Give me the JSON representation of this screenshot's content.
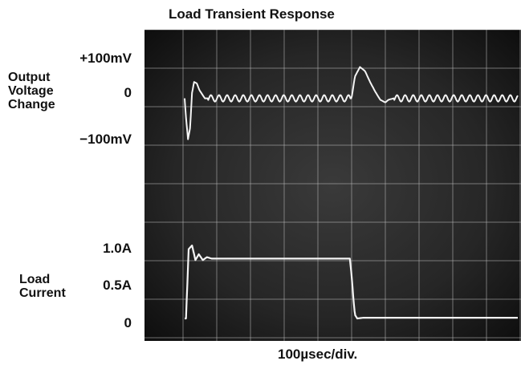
{
  "chart_data": {
    "type": "line",
    "title": "Load Transient Response",
    "xlabel": "100µsec/div.",
    "grid": true,
    "panels": [
      {
        "name": "Output Voltage Change",
        "label_lines": [
          "Output",
          "Voltage",
          "Change"
        ],
        "unit": "mV",
        "y_ticks": [
          "+100mV",
          "0",
          "−100mV"
        ],
        "y_tick_values": [
          100,
          0,
          -100
        ],
        "series": [
          {
            "x": [
              0,
              0.04,
              0.1,
              0.16,
              0.22,
              0.28,
              0.36,
              0.44,
              0.52,
              0.6,
              0.8,
              1.0,
              1.5,
              2.0,
              2.5,
              3.0,
              3.5,
              4.0,
              4.5,
              4.95,
              5.05,
              5.2,
              5.35,
              5.5,
              5.65,
              5.8,
              5.95,
              6.05,
              6.2,
              6.5,
              7.0,
              7.5,
              8.0,
              8.5,
              9.0,
              9.5,
              10.0
            ],
            "y": [
              -40,
              -110,
              -190,
              -150,
              -20,
              20,
              15,
              -10,
              -25,
              -40,
              -40,
              -40,
              -40,
              -40,
              -40,
              -40,
              -40,
              -40,
              -40,
              -40,
              40,
              75,
              60,
              20,
              -15,
              -45,
              -55,
              -45,
              -40,
              -40,
              -40,
              -40,
              -40,
              -40,
              -40,
              -40,
              -40
            ]
          }
        ],
        "ripple_mV": 12,
        "ripple_period_div": 0.24
      },
      {
        "name": "Load Current",
        "label_lines": [
          "Load",
          "Current"
        ],
        "unit": "A",
        "y_ticks": [
          "1.0A",
          "0.5A",
          "0"
        ],
        "y_tick_values": [
          1.0,
          0.5,
          0
        ],
        "series": [
          {
            "x": [
              0,
              0.04,
              0.12,
              0.22,
              0.32,
              0.42,
              0.54,
              0.66,
              0.8,
              1.2,
              2.0,
              3.0,
              4.0,
              4.8,
              4.9,
              4.95,
              5.0,
              5.05,
              5.12,
              5.3,
              6.0,
              7.0,
              8.0,
              9.0,
              10.0
            ],
            "y": [
              0,
              0,
              0.95,
              1.0,
              0.8,
              0.88,
              0.8,
              0.84,
              0.82,
              0.82,
              0.82,
              0.82,
              0.82,
              0.82,
              0.82,
              0.6,
              0.3,
              0.05,
              0.0,
              0.01,
              0.01,
              0.01,
              0.01,
              0.01,
              0.01
            ]
          }
        ]
      }
    ]
  }
}
